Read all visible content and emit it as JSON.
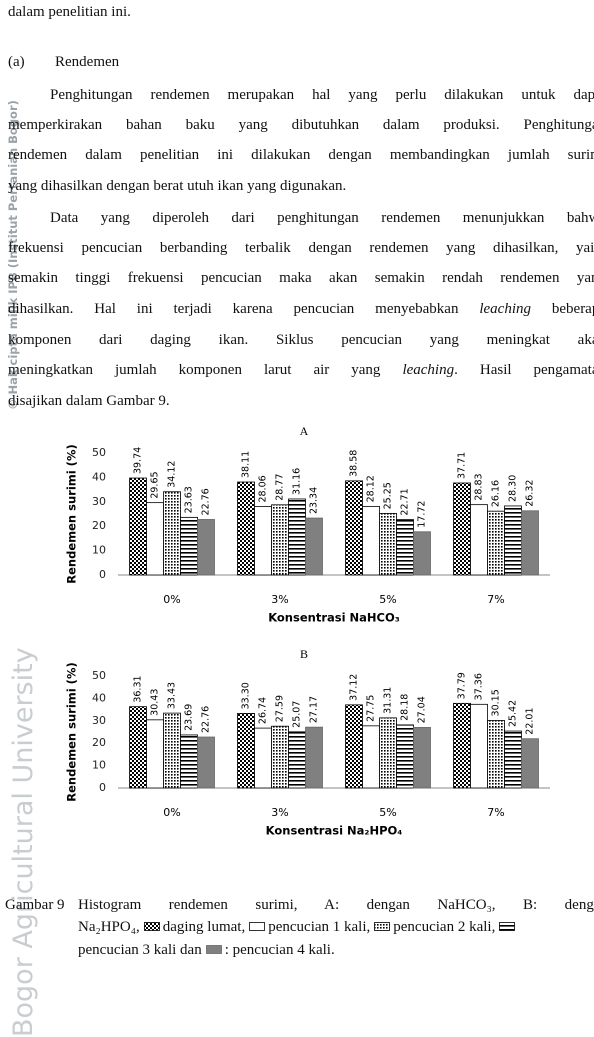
{
  "watermark": {
    "copyright": "© Hak cipta milik IPB (Institut Pertanian Bogor)",
    "university": "Bogor Agricultural University"
  },
  "body": {
    "intro": "dalam penelitian ini.",
    "section_label": "(a)",
    "section_title": "Rendemen",
    "paragraph1": [
      "Penghitungan rendemen merupakan hal yang perlu dilakukan untuk dapat",
      "memperkirakan bahan baku yang dibutuhkan dalam produksi.  Penghitungan",
      "rendemen dalam penelitian ini dilakukan dengan membandingkan jumlah surimi",
      "yang dihasilkan dengan berat utuh ikan yang digunakan."
    ],
    "paragraph2": [
      "Data yang diperoleh dari penghitungan rendemen menunjukkan bahwa",
      "frekuensi pencucian berbanding terbalik dengan rendemen yang dihasilkan, yaitu",
      "semakin tinggi frekuensi pencucian maka akan semakin rendah rendemen yang",
      [
        "dihasilkan.   Hal ini terjadi karena pencucian menyebabkan",
        "leaching",
        "beberapa"
      ],
      "komponen dari daging ikan.  Siklus pencucian yang meningkat akan",
      [
        "meningkatkan jumlah komponen larut air yang",
        "leaching",
        ".  Hasil pengamatan"
      ],
      "disajikan dalam Gambar 9."
    ]
  },
  "chart_data": [
    {
      "type": "bar",
      "title": "A",
      "y_label": "Rendemen surimi (%)",
      "x_label": "Konsentrasi NaHCO₃",
      "categories": [
        "0%",
        "3%",
        "5%",
        "7%"
      ],
      "ylim": [
        0,
        50
      ],
      "yticks": [
        0,
        10,
        20,
        30,
        40,
        50
      ],
      "series": [
        {
          "name": "daging lumat",
          "color": "#000000",
          "pattern": "checker",
          "values": [
            39.74,
            38.11,
            38.58,
            37.71
          ]
        },
        {
          "name": "pencucian 1 kali",
          "color": "#000000",
          "pattern": "none",
          "values": [
            29.65,
            28.06,
            28.12,
            28.83
          ]
        },
        {
          "name": "pencucian 2 kali",
          "color": "#000000",
          "pattern": "dots",
          "values": [
            34.12,
            28.77,
            25.25,
            26.16
          ]
        },
        {
          "name": "pencucian 3 kali",
          "color": "#000000",
          "pattern": "hstripe",
          "values": [
            23.63,
            31.16,
            22.71,
            28.3
          ],
          "value_labels": [
            "23.63",
            "31.16",
            "22.71",
            "28.30"
          ]
        },
        {
          "name": "pencucian 4 kali",
          "color": "#808080",
          "values": [
            22.76,
            23.34,
            17.72,
            26.32
          ]
        }
      ]
    },
    {
      "type": "bar",
      "title": "B",
      "y_label": "Rendemen surimi (%)",
      "x_label": "Konsentrasi  Na₂HPO₄",
      "categories": [
        "0%",
        "3%",
        "5%",
        "7%"
      ],
      "ylim": [
        0,
        50
      ],
      "yticks": [
        0,
        10,
        20,
        30,
        40,
        50
      ],
      "series": [
        {
          "color": "#000000",
          "pattern": "checker",
          "values": [
            36.31,
            33.3,
            37.12,
            37.79
          ],
          "value_labels": [
            "36.31",
            "33.30",
            "37.12",
            "37.79"
          ]
        },
        {
          "color": "#000000",
          "pattern": "none",
          "values": [
            30.43,
            26.74,
            27.75,
            37.36
          ]
        },
        {
          "color": "#000000",
          "pattern": "dots",
          "values": [
            33.43,
            27.59,
            31.31,
            30.15
          ]
        },
        {
          "color": "#000000",
          "pattern": "hstripe",
          "values": [
            23.69,
            25.07,
            28.18,
            25.42
          ]
        },
        {
          "color": "#808080",
          "values": [
            22.76,
            27.17,
            27.04,
            22.01
          ]
        }
      ]
    }
  ],
  "caption": {
    "label": "Gambar 9",
    "line1": "Histogram rendemen surimi, A: dengan NaHCO₃, B: dengan",
    "line2_start": "Na₂HPO₄,",
    "separators": [
      ",",
      ",",
      ",",
      "dan",
      ":",
      "."
    ]
  }
}
